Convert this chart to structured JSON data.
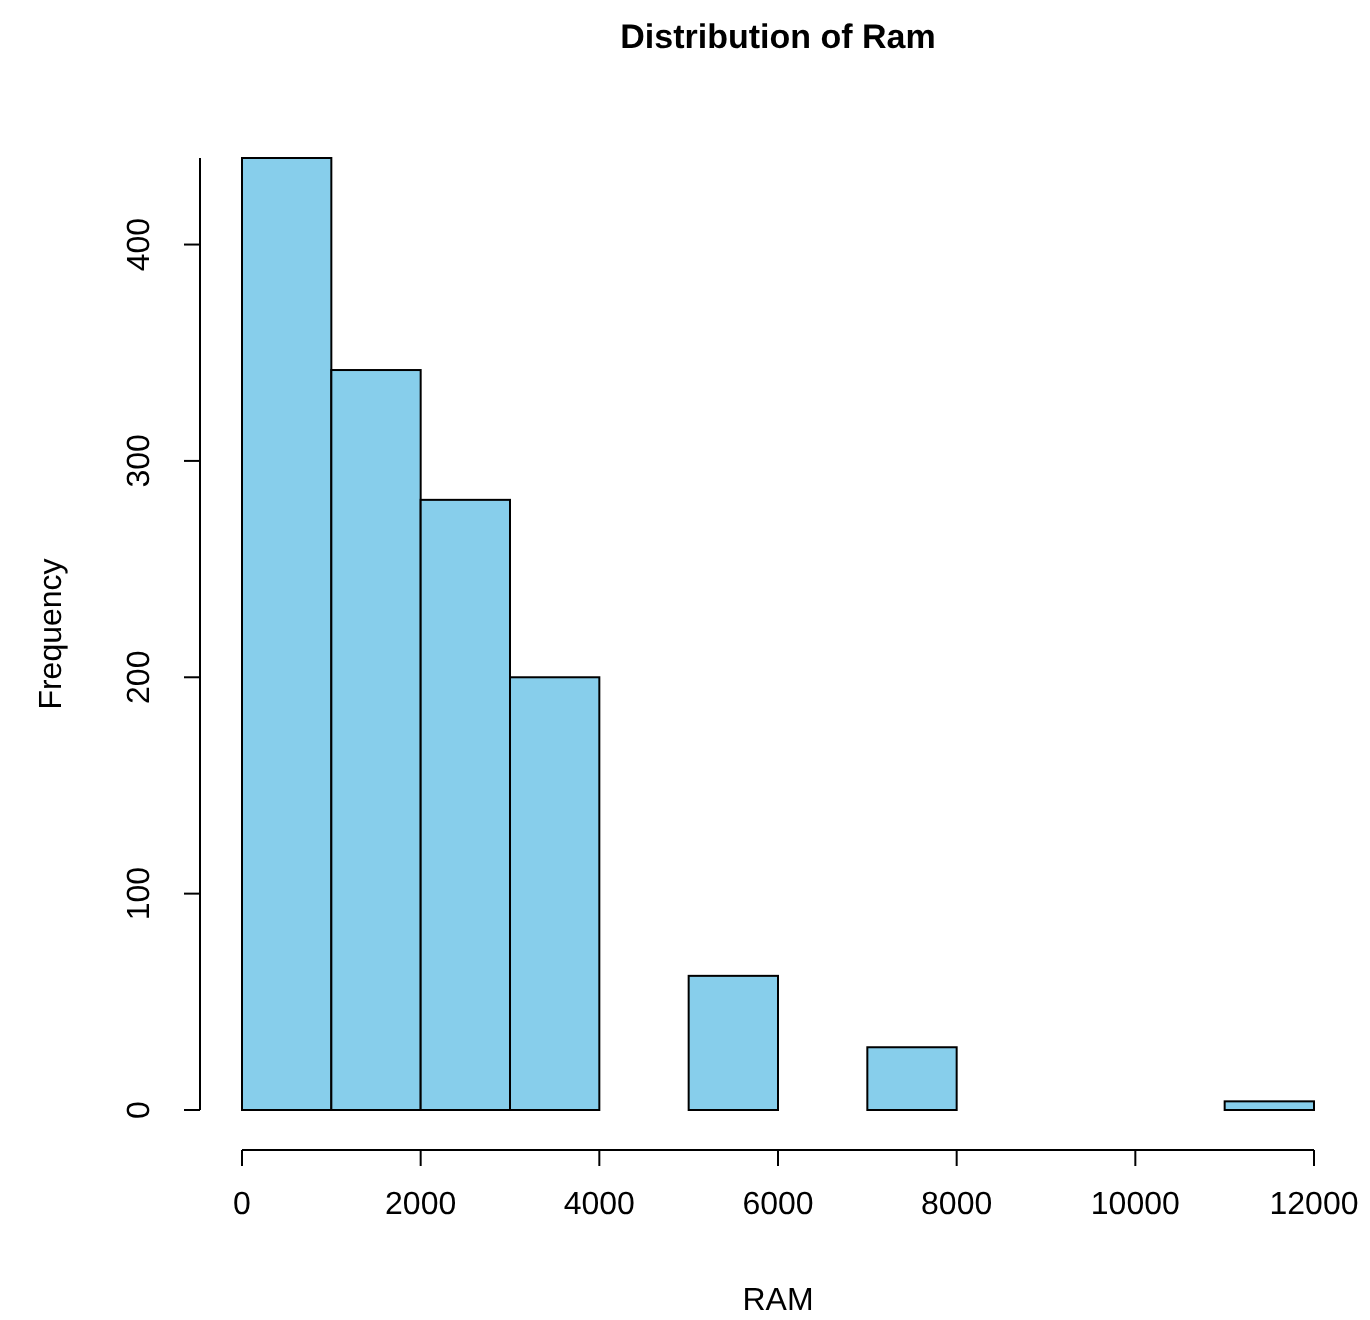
{
  "chart_data": {
    "type": "histogram",
    "title": "Distribution of Ram",
    "xlabel": "RAM",
    "ylabel": "Frequency",
    "bins": [
      0,
      1000,
      2000,
      3000,
      4000,
      5000,
      6000,
      7000,
      8000,
      9000,
      10000,
      11000,
      12000
    ],
    "values": [
      440,
      342,
      282,
      200,
      0,
      62,
      0,
      29,
      0,
      0,
      0,
      4
    ],
    "color": "#87ceeb",
    "xlim": [
      0,
      12000
    ],
    "xticks": [
      0,
      2000,
      4000,
      6000,
      8000,
      10000,
      12000
    ],
    "ylim": [
      0,
      440
    ],
    "yticks": [
      0,
      100,
      200,
      300,
      400
    ],
    "grid": false
  }
}
